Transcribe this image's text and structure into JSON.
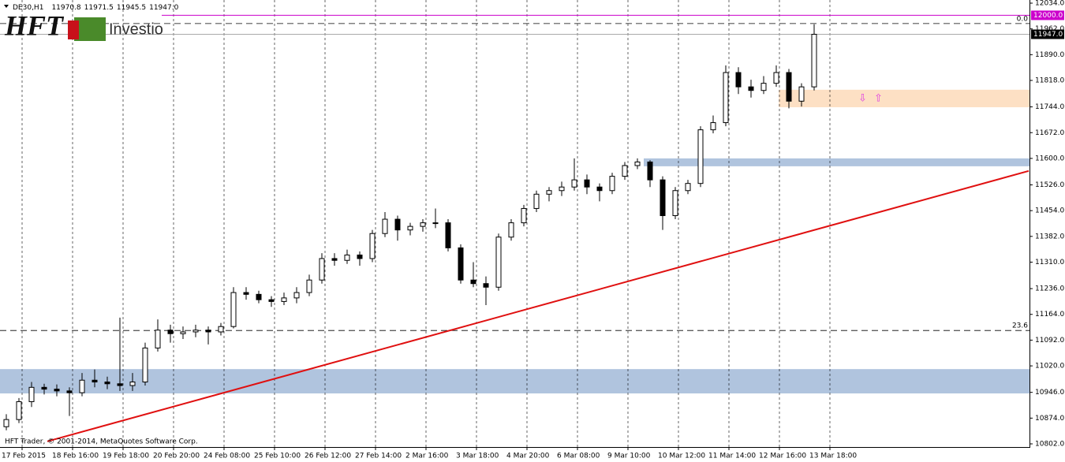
{
  "chart_data": {
    "type": "candlestick",
    "symbol": "DE30,H1",
    "header_ohlc": [
      {
        "value": 11970.8,
        "label": "11970.8"
      },
      {
        "value": 11971.5,
        "label": "11971.5"
      },
      {
        "value": 11945.5,
        "label": "11945.5"
      },
      {
        "value": 11947.0,
        "label": "11947.0"
      }
    ],
    "logo": "HFT",
    "logo_sub": "Investio",
    "copyright": "HFT Trader, © 2001-2014, MetaQuotes Software Corp.",
    "categories": [
      "17 Feb 2015",
      "18 Feb 16:00",
      "19 Feb 18:00",
      "20 Feb 20:00",
      "24 Feb 08:00",
      "25 Feb 10:00",
      "26 Feb 12:00",
      "27 Feb 14:00",
      "2 Mar 16:00",
      "3 Mar 18:00",
      "4 Mar 20:00",
      "6 Mar 08:00",
      "9 Mar 10:00",
      "10 Mar 12:00",
      "11 Mar 14:00",
      "12 Mar 16:00",
      "13 Mar 18:00"
    ],
    "ylim": [
      10802,
      12034
    ],
    "yticks": [
      {
        "value": 12034,
        "label": "12034.0"
      },
      {
        "value": 11962,
        "label": "11962.0"
      },
      {
        "value": 11890,
        "label": "11890.0"
      },
      {
        "value": 11818,
        "label": "11818.0"
      },
      {
        "value": 11744,
        "label": "11744.0"
      },
      {
        "value": 11672,
        "label": "11672.0"
      },
      {
        "value": 11600,
        "label": "11600.0"
      },
      {
        "value": 11526,
        "label": "11526.0"
      },
      {
        "value": 11454,
        "label": "11454.0"
      },
      {
        "value": 11382,
        "label": "11382.0"
      },
      {
        "value": 11310,
        "label": "11310.0"
      },
      {
        "value": 11236,
        "label": "11236.0"
      },
      {
        "value": 11164,
        "label": "11164.0"
      },
      {
        "value": 11092,
        "label": "11092.0"
      },
      {
        "value": 11020,
        "label": "11020.0"
      },
      {
        "value": 10946,
        "label": "10946.0"
      },
      {
        "value": 10874,
        "label": "10874.0"
      },
      {
        "value": 10802,
        "label": "10802.0"
      }
    ],
    "price_lines": [
      {
        "value": 12000,
        "label": "12000.0",
        "color": "#cc00cc"
      },
      {
        "value": 11947,
        "label": "11947.0",
        "color": "#000000"
      }
    ],
    "fibo_levels": [
      {
        "level": "0.0",
        "price": 11977
      },
      {
        "level": "23.6",
        "price": 11119
      }
    ],
    "zones": [
      {
        "from": 10943,
        "to": 11011,
        "start": 0,
        "color": "#b0c4de"
      },
      {
        "from": 11578,
        "to": 11600,
        "start": 50.5,
        "color": "#b0c4de"
      },
      {
        "from": 11743,
        "to": 11792,
        "start": 61.2,
        "color": "#fde0c4"
      }
    ],
    "trendline": {
      "start": [
        3.25,
        10809
      ],
      "end": [
        81,
        11565
      ],
      "color": "#e01010"
    },
    "candles": [
      [
        10850,
        10885,
        10840,
        10870
      ],
      [
        10870,
        10930,
        10860,
        10920
      ],
      [
        10920,
        10975,
        10905,
        10960
      ],
      [
        10960,
        10970,
        10940,
        10955
      ],
      [
        10955,
        10968,
        10935,
        10950
      ],
      [
        10950,
        10960,
        10880,
        10945
      ],
      [
        10945,
        11000,
        10935,
        10980
      ],
      [
        10980,
        11010,
        10960,
        10975
      ],
      [
        10975,
        10990,
        10955,
        10970
      ],
      [
        10970,
        11155,
        10950,
        10965
      ],
      [
        10965,
        11000,
        10950,
        10975
      ],
      [
        10975,
        11085,
        10965,
        11070
      ],
      [
        11070,
        11150,
        11060,
        11120
      ],
      [
        11120,
        11135,
        11085,
        11110
      ],
      [
        11110,
        11130,
        11095,
        11115
      ],
      [
        11115,
        11135,
        11100,
        11120
      ],
      [
        11120,
        11130,
        11080,
        11115
      ],
      [
        11115,
        11140,
        11105,
        11130
      ],
      [
        11130,
        11240,
        11125,
        11225
      ],
      [
        11225,
        11240,
        11205,
        11220
      ],
      [
        11220,
        11230,
        11195,
        11205
      ],
      [
        11205,
        11215,
        11185,
        11200
      ],
      [
        11200,
        11225,
        11190,
        11210
      ],
      [
        11210,
        11240,
        11195,
        11225
      ],
      [
        11225,
        11275,
        11215,
        11260
      ],
      [
        11260,
        11335,
        11250,
        11320
      ],
      [
        11320,
        11335,
        11300,
        11315
      ],
      [
        11315,
        11345,
        11305,
        11330
      ],
      [
        11330,
        11340,
        11300,
        11320
      ],
      [
        11320,
        11400,
        11310,
        11390
      ],
      [
        11390,
        11450,
        11380,
        11430
      ],
      [
        11430,
        11440,
        11370,
        11400
      ],
      [
        11400,
        11420,
        11385,
        11410
      ],
      [
        11410,
        11430,
        11395,
        11420
      ],
      [
        11420,
        11460,
        11405,
        11420
      ],
      [
        11420,
        11430,
        11340,
        11350
      ],
      [
        11350,
        11360,
        11250,
        11260
      ],
      [
        11260,
        11310,
        11240,
        11250
      ],
      [
        11250,
        11270,
        11190,
        11240
      ],
      [
        11240,
        11390,
        11230,
        11380
      ],
      [
        11380,
        11430,
        11370,
        11420
      ],
      [
        11420,
        11470,
        11410,
        11460
      ],
      [
        11460,
        11510,
        11450,
        11500
      ],
      [
        11500,
        11520,
        11480,
        11510
      ],
      [
        11510,
        11535,
        11495,
        11520
      ],
      [
        11520,
        11600,
        11510,
        11540
      ],
      [
        11540,
        11555,
        11500,
        11520
      ],
      [
        11520,
        11530,
        11480,
        11510
      ],
      [
        11510,
        11560,
        11500,
        11550
      ],
      [
        11550,
        11590,
        11540,
        11580
      ],
      [
        11580,
        11600,
        11570,
        11590
      ],
      [
        11590,
        11595,
        11520,
        11540
      ],
      [
        11540,
        11550,
        11400,
        11440
      ],
      [
        11440,
        11520,
        11430,
        11510
      ],
      [
        11510,
        11540,
        11500,
        11530
      ],
      [
        11530,
        11690,
        11520,
        11680
      ],
      [
        11680,
        11720,
        11670,
        11700
      ],
      [
        11700,
        11860,
        11690,
        11840
      ],
      [
        11840,
        11855,
        11780,
        11800
      ],
      [
        11800,
        11820,
        11770,
        11790
      ],
      [
        11790,
        11830,
        11780,
        11810
      ],
      [
        11810,
        11860,
        11800,
        11840
      ],
      [
        11840,
        11850,
        11740,
        11760
      ],
      [
        11760,
        11810,
        11745,
        11800
      ],
      [
        11800,
        11975,
        11790,
        11947
      ]
    ]
  }
}
